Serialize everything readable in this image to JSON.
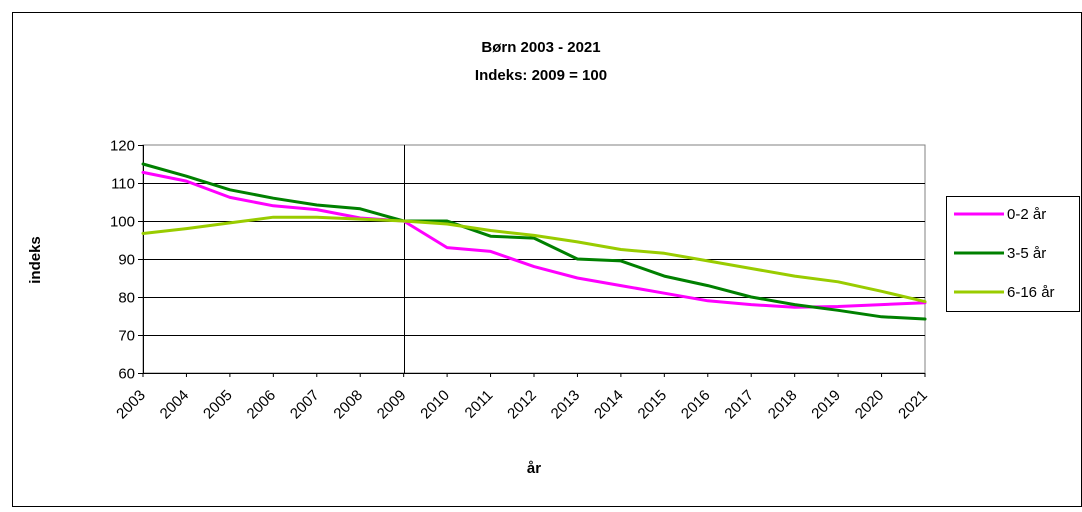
{
  "chart_data": {
    "type": "line",
    "title": "Børn 2003 - 2021",
    "subtitle": "Indeks: 2009 = 100",
    "xlabel": "år",
    "ylabel": "indeks",
    "ylim": [
      60,
      120
    ],
    "yticks": [
      "60",
      "70",
      "80",
      "90",
      "100",
      "110",
      "120"
    ],
    "categories": [
      "2003",
      "2004",
      "2005",
      "2006",
      "2007",
      "2008",
      "2009",
      "2010",
      "2011",
      "2012",
      "2013",
      "2014",
      "2015",
      "2016",
      "2017",
      "2018",
      "2019",
      "2020",
      "2021"
    ],
    "grid": true,
    "legend_position": "right",
    "series": [
      {
        "name": "0-2 år",
        "color": "#ff00ff",
        "values": [
          112.8,
          110.5,
          106.2,
          104.0,
          103.0,
          100.8,
          100.0,
          93.0,
          92.0,
          88.0,
          85.0,
          83.0,
          81.0,
          79.0,
          78.0,
          77.3,
          77.5,
          78.0,
          78.5
        ]
      },
      {
        "name": "3-5 år",
        "color": "#008000",
        "values": [
          115.0,
          111.8,
          108.2,
          106.0,
          104.2,
          103.2,
          100.0,
          100.0,
          96.0,
          95.5,
          90.0,
          89.5,
          85.5,
          83.0,
          80.0,
          78.0,
          76.5,
          74.8,
          74.2
        ]
      },
      {
        "name": "6-16 år",
        "color": "#99cc00",
        "values": [
          96.7,
          98.0,
          99.5,
          101.0,
          101.0,
          100.5,
          100.0,
          99.2,
          97.5,
          96.2,
          94.5,
          92.5,
          91.5,
          89.5,
          87.5,
          85.5,
          84.0,
          81.5,
          78.8
        ]
      }
    ]
  }
}
